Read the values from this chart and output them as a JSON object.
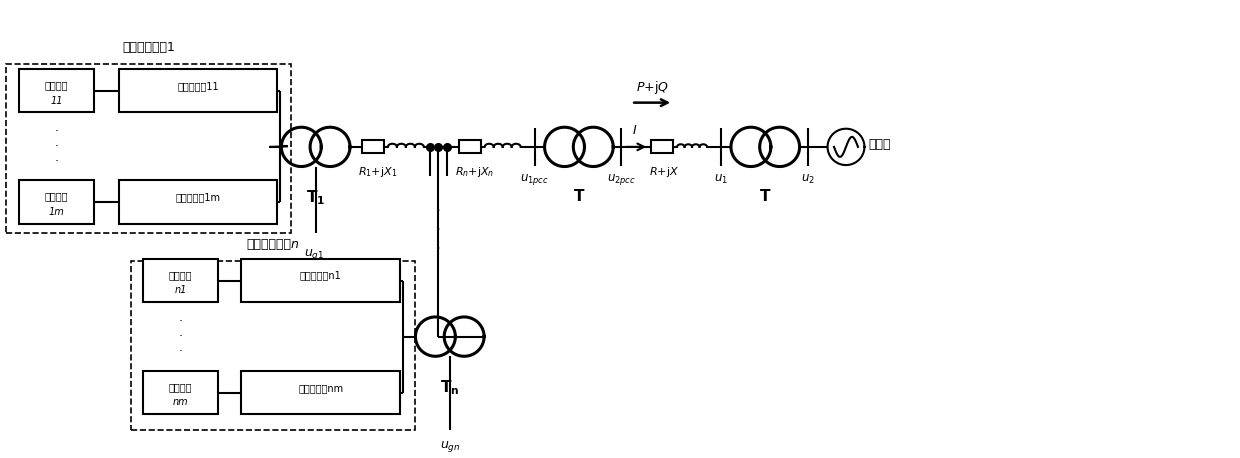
{
  "bg_color": "#ffffff",
  "figsize": [
    12.4,
    4.58
  ],
  "dpi": 100,
  "labels": {
    "unit1_title": "光伏发电单元1",
    "unitn_title": "光伏发电单元n",
    "pv11_line1": "光伏阵列",
    "pv11_line2": "11",
    "pv1m_line1": "光伏阵列",
    "pv1m_line2": "1m",
    "inv11": "并网逆变器11",
    "inv1m": "并网逆变器1m",
    "pvn1_line1": "光伏阵列",
    "pvn1_line2": "n1",
    "pvnm_line1": "光伏阵列",
    "pvnm_line2": "nm",
    "invn1": "并网逆变器n1",
    "invnm": "并网逆变器nm",
    "grid": "大电网"
  }
}
